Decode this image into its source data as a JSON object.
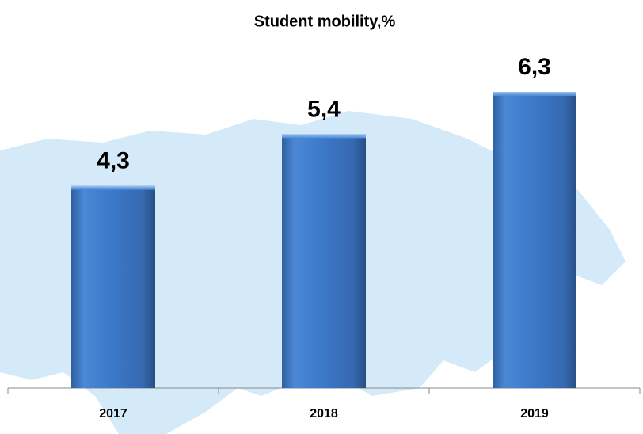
{
  "chart_data": {
    "type": "bar",
    "title": "Student mobility,%",
    "categories": [
      "2017",
      "2018",
      "2019"
    ],
    "values": [
      4.3,
      5.4,
      6.3
    ],
    "value_labels": [
      "4,3",
      "5,4",
      "6,3"
    ],
    "color": "#3b78c8"
  }
}
